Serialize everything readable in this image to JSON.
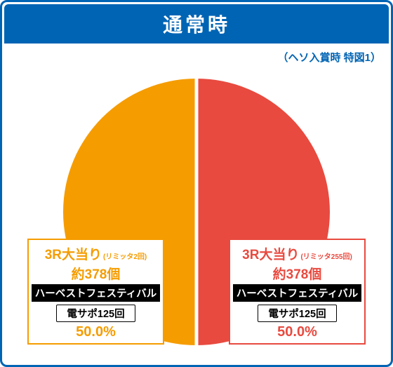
{
  "header": {
    "title": "通常時",
    "bg_color": "#0064b4",
    "border_color": "#0064b4"
  },
  "subtitle": {
    "text": "（ヘソ入賞時 特図1）",
    "color": "#0064b4"
  },
  "chart": {
    "type": "pie",
    "background_color": "#ffffff",
    "divider_color": "#ffffff",
    "slices": [
      {
        "key": "left",
        "value": 50.0,
        "color": "#f59c00",
        "title": "3R大当り",
        "title_sub": "(リミッタ2回)",
        "amount": "約378個",
        "band_black": "ハーベストフェスティバル",
        "pill_text": "電サポ125回",
        "percent_label": "50.0%"
      },
      {
        "key": "right",
        "value": 50.0,
        "color": "#e84a3f",
        "title": "3R大当り",
        "title_sub": "(リミッタ255回)",
        "amount": "約378個",
        "band_black": "ハーベストフェスティバル",
        "pill_text": "電サポ125回",
        "percent_label": "50.0%"
      }
    ]
  },
  "label_card": {
    "title_fontsize": 19,
    "sub_fontsize": 10,
    "amount_fontsize": 19,
    "band_fontsize": 14.5,
    "pill_fontsize": 14.5,
    "pct_fontsize": 20
  }
}
